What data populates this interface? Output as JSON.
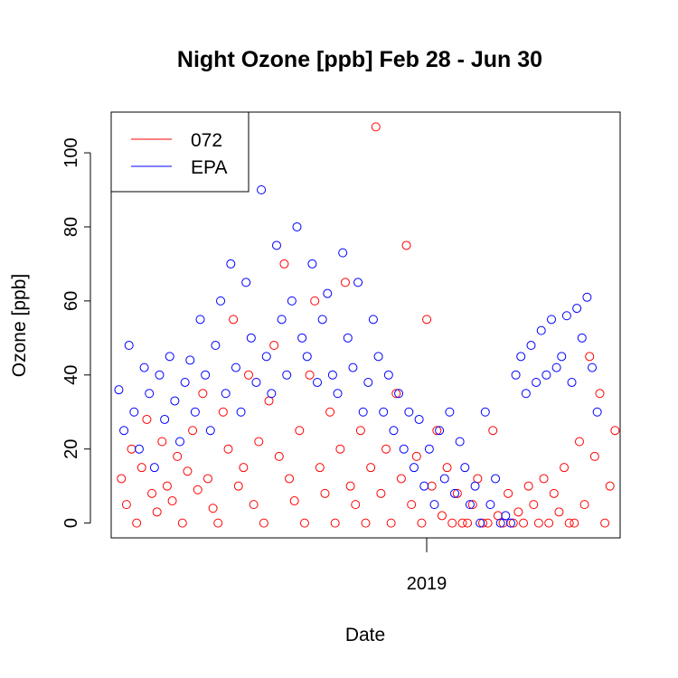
{
  "chart_data": {
    "type": "scatter",
    "title": "Night Ozone [ppb] Feb 28 - Jun 30",
    "xlabel": "Date",
    "ylabel": "Ozone [ppb]",
    "x_tick_labels": [
      "2019"
    ],
    "y_ticks": [
      0,
      20,
      40,
      60,
      80,
      100
    ],
    "y_tick_labels": [
      "0",
      "20",
      "40",
      "60",
      "80",
      "100"
    ],
    "ylim": [
      -4,
      111
    ],
    "grid": false,
    "legend_position": "top-left",
    "marker": "open-circle",
    "series": [
      {
        "name": "072",
        "color": "#ff0000",
        "x": [
          0.02,
          0.03,
          0.04,
          0.05,
          0.06,
          0.07,
          0.08,
          0.09,
          0.1,
          0.11,
          0.12,
          0.13,
          0.14,
          0.15,
          0.16,
          0.17,
          0.18,
          0.19,
          0.2,
          0.21,
          0.22,
          0.23,
          0.24,
          0.25,
          0.26,
          0.27,
          0.28,
          0.29,
          0.3,
          0.31,
          0.32,
          0.33,
          0.34,
          0.35,
          0.36,
          0.37,
          0.38,
          0.39,
          0.4,
          0.41,
          0.42,
          0.43,
          0.44,
          0.45,
          0.46,
          0.47,
          0.48,
          0.49,
          0.5,
          0.51,
          0.52,
          0.53,
          0.54,
          0.55,
          0.56,
          0.57,
          0.58,
          0.59,
          0.6,
          0.61,
          0.62,
          0.63,
          0.64,
          0.65,
          0.66,
          0.67,
          0.68,
          0.69,
          0.7,
          0.71,
          0.72,
          0.73,
          0.74,
          0.75,
          0.76,
          0.77,
          0.78,
          0.79,
          0.8,
          0.81,
          0.82,
          0.83,
          0.84,
          0.85,
          0.86,
          0.87,
          0.88,
          0.89,
          0.9,
          0.91,
          0.92,
          0.93,
          0.94,
          0.95,
          0.96,
          0.97,
          0.98,
          0.99
        ],
        "y": [
          12,
          5,
          20,
          0,
          15,
          28,
          8,
          3,
          22,
          10,
          6,
          18,
          0,
          14,
          25,
          9,
          35,
          12,
          4,
          0,
          30,
          20,
          55,
          10,
          15,
          40,
          5,
          22,
          0,
          33,
          48,
          18,
          70,
          12,
          6,
          25,
          0,
          40,
          60,
          15,
          8,
          30,
          0,
          20,
          65,
          10,
          5,
          25,
          0,
          15,
          107,
          8,
          20,
          0,
          35,
          12,
          75,
          5,
          18,
          0,
          55,
          10,
          25,
          2,
          15,
          0,
          8,
          0,
          0,
          5,
          12,
          0,
          0,
          25,
          2,
          0,
          8,
          0,
          3,
          0,
          10,
          5,
          0,
          12,
          0,
          8,
          3,
          15,
          0,
          0,
          22,
          5,
          45,
          18,
          35,
          0,
          10,
          25
        ]
      },
      {
        "name": "EPA",
        "color": "#0000ff",
        "x": [
          0.015,
          0.025,
          0.035,
          0.045,
          0.055,
          0.065,
          0.075,
          0.085,
          0.095,
          0.105,
          0.115,
          0.125,
          0.135,
          0.145,
          0.155,
          0.165,
          0.175,
          0.185,
          0.195,
          0.205,
          0.215,
          0.225,
          0.235,
          0.245,
          0.255,
          0.265,
          0.275,
          0.285,
          0.295,
          0.305,
          0.315,
          0.325,
          0.335,
          0.345,
          0.355,
          0.365,
          0.375,
          0.385,
          0.395,
          0.405,
          0.415,
          0.425,
          0.435,
          0.445,
          0.455,
          0.465,
          0.475,
          0.485,
          0.495,
          0.505,
          0.515,
          0.525,
          0.535,
          0.545,
          0.555,
          0.565,
          0.575,
          0.585,
          0.595,
          0.605,
          0.615,
          0.625,
          0.635,
          0.645,
          0.655,
          0.665,
          0.675,
          0.685,
          0.695,
          0.705,
          0.715,
          0.725,
          0.735,
          0.745,
          0.755,
          0.765,
          0.775,
          0.785,
          0.795,
          0.805,
          0.815,
          0.825,
          0.835,
          0.845,
          0.855,
          0.865,
          0.875,
          0.885,
          0.895,
          0.905,
          0.915,
          0.925,
          0.935,
          0.945,
          0.955
        ],
        "y": [
          36,
          25,
          48,
          30,
          20,
          42,
          35,
          15,
          40,
          28,
          45,
          33,
          22,
          38,
          44,
          30,
          55,
          40,
          25,
          48,
          60,
          35,
          70,
          42,
          30,
          65,
          50,
          38,
          90,
          45,
          35,
          75,
          55,
          40,
          60,
          80,
          50,
          45,
          70,
          38,
          55,
          62,
          40,
          35,
          73,
          50,
          42,
          65,
          30,
          38,
          55,
          45,
          30,
          40,
          25,
          35,
          20,
          30,
          15,
          28,
          10,
          20,
          5,
          25,
          12,
          30,
          8,
          22,
          15,
          5,
          10,
          0,
          30,
          5,
          12,
          0,
          2,
          0,
          40,
          45,
          35,
          48,
          38,
          52,
          40,
          55,
          42,
          45,
          56,
          38,
          58,
          50,
          61,
          42,
          30
        ]
      }
    ]
  }
}
